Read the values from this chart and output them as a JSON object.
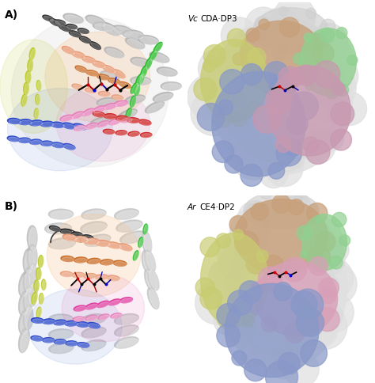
{
  "figure_width": 4.74,
  "figure_height": 4.84,
  "background_color": "#ffffff",
  "panel_A_label": "A)",
  "panel_B_label": "B)",
  "title_italic_prefix_A": "Vc",
  "title_normal_suffix_A": "CDA·DP3",
  "title_italic_prefix_B": "Ar",
  "title_normal_suffix_B": "CE4·DP2",
  "label_fontsize": 10,
  "title_fontsize": 7.5,
  "dpi": 100,
  "colors": {
    "orange": "#e8956d",
    "dark_orange": "#c8641a",
    "black": "#1a1a1a",
    "green": "#22bb22",
    "yellow_green": "#b8c820",
    "blue": "#2040c8",
    "pink": "#e878b8",
    "hot_pink": "#e0309a",
    "red": "#cc1818",
    "gray": "#a0a0a0",
    "light_gray": "#c8c8c8",
    "white": "#ffffff",
    "tan": "#c8a07a",
    "light_tan": "#ddbf9a",
    "blue_surface": "#8898c8",
    "pink_surface": "#c898b0",
    "yellow_surface": "#c8c878",
    "green_surface": "#98c888",
    "light_blue_transp": "#8090c8",
    "light_pink_transp": "#e090c0"
  }
}
